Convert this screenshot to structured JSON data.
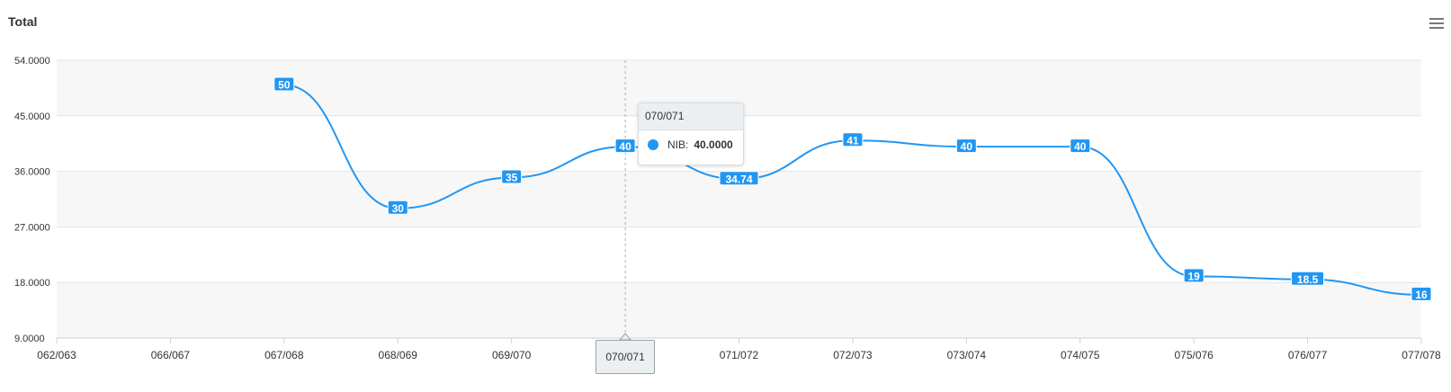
{
  "title": "Total",
  "menu_icon": "hamburger-menu-icon",
  "colors": {
    "series": "#2196f3",
    "label_bg": "#2196f3"
  },
  "chart_data": {
    "type": "line",
    "x": [
      "062/063",
      "066/067",
      "067/068",
      "068/069",
      "069/070",
      "070/071",
      "071/072",
      "072/073",
      "073/074",
      "074/075",
      "075/076",
      "076/077",
      "077/078"
    ],
    "series": [
      {
        "name": "NIB",
        "values": [
          null,
          null,
          50,
          30,
          35,
          40,
          34.74,
          41,
          40,
          40,
          19,
          18.5,
          16
        ],
        "labels": [
          "",
          "",
          "50",
          "30",
          "35",
          "40",
          "34.74",
          "41",
          "40",
          "40",
          "19",
          "18.5",
          "16"
        ]
      }
    ],
    "yticks": [
      "54.0000",
      "45.0000",
      "36.0000",
      "27.0000",
      "18.0000",
      "9.0000"
    ],
    "ytick_values": [
      54,
      45,
      36,
      27,
      18,
      9
    ],
    "ylim": [
      9,
      54
    ],
    "grid": "horizontal, alternating bands",
    "legend": "none",
    "smooth": true
  },
  "tooltip": {
    "header": "070/071",
    "series_label": "NIB:",
    "value": "40.0000"
  },
  "crosshair_label": "070/071"
}
